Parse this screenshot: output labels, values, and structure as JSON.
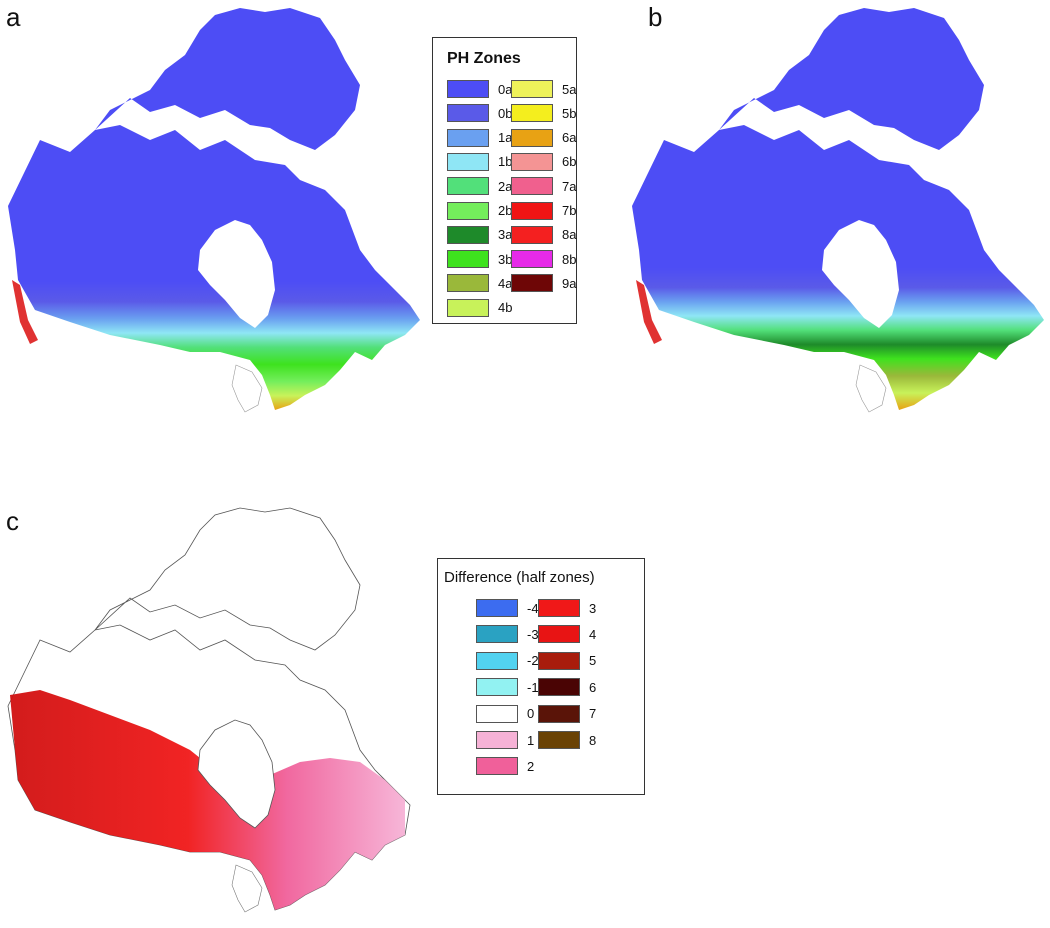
{
  "panels": {
    "a": "a",
    "b": "b",
    "c": "c"
  },
  "zones_legend": {
    "title": "PH Zones",
    "col1": [
      {
        "label": "0a",
        "color": "#4d4df5"
      },
      {
        "label": "0b",
        "color": "#5a5ae8"
      },
      {
        "label": "1a",
        "color": "#6aa0f0"
      },
      {
        "label": "1b",
        "color": "#8fe6f5"
      },
      {
        "label": "2a",
        "color": "#52e07a"
      },
      {
        "label": "2b",
        "color": "#74ee5c"
      },
      {
        "label": "3a",
        "color": "#1e8a2a"
      },
      {
        "label": "3b",
        "color": "#3ee21e"
      },
      {
        "label": "4a",
        "color": "#9ab83a"
      },
      {
        "label": "4b",
        "color": "#c8f25a"
      }
    ],
    "col2": [
      {
        "label": "5a",
        "color": "#eef25a"
      },
      {
        "label": "5b",
        "color": "#f4ee1e"
      },
      {
        "label": "6a",
        "color": "#e8a214"
      },
      {
        "label": "6b",
        "color": "#f49494"
      },
      {
        "label": "7a",
        "color": "#f0608e"
      },
      {
        "label": "7b",
        "color": "#f01414"
      },
      {
        "label": "8a",
        "color": "#f42020"
      },
      {
        "label": "8b",
        "color": "#e62ae8"
      },
      {
        "label": "9a",
        "color": "#6e0606"
      }
    ]
  },
  "diff_legend": {
    "title": "Difference (half zones)",
    "col1": [
      {
        "label": "-4",
        "color": "#3c6cf0"
      },
      {
        "label": "-3",
        "color": "#2aa2c2"
      },
      {
        "label": "-2",
        "color": "#52d2f0"
      },
      {
        "label": "-1",
        "color": "#92f2f2"
      },
      {
        "label": "0",
        "color": "#ffffff"
      },
      {
        "label": "1",
        "color": "#f6b2d6"
      },
      {
        "label": "2",
        "color": "#f0609a"
      }
    ],
    "col2": [
      {
        "label": "3",
        "color": "#f01818"
      },
      {
        "label": "4",
        "color": "#e81414"
      },
      {
        "label": "5",
        "color": "#a81c0c"
      },
      {
        "label": "6",
        "color": "#4a0404"
      },
      {
        "label": "7",
        "color": "#5a1408"
      },
      {
        "label": "8",
        "color": "#6a4204"
      }
    ]
  }
}
